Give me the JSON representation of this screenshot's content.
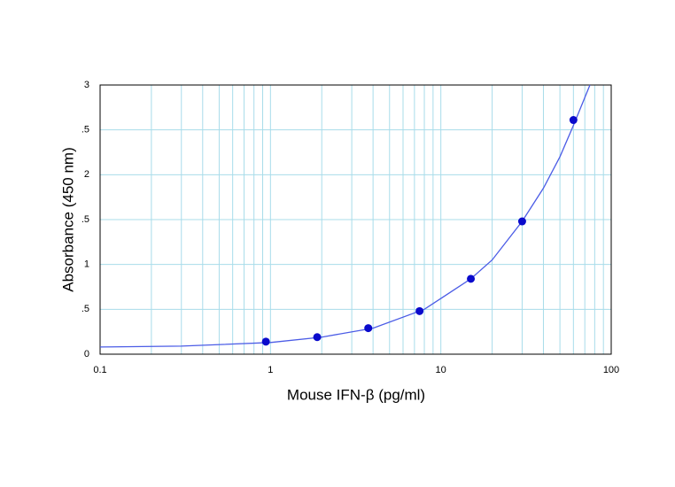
{
  "chart_data": {
    "type": "scatter",
    "x_label": "Mouse IFN-β (pg/ml)",
    "y_label": "Absorbance (450 nm)",
    "xscale": "log",
    "xlim": [
      0.1,
      100
    ],
    "xticks": [
      0.1,
      1,
      10,
      100
    ],
    "xminorticks": [
      0.2,
      0.3,
      0.4,
      0.5,
      0.6,
      0.7,
      0.8,
      0.9,
      2,
      3,
      4,
      5,
      6,
      7,
      8,
      9,
      20,
      30,
      40,
      50,
      60,
      70,
      80,
      90
    ],
    "ylim": [
      0,
      3
    ],
    "yticks": [
      0,
      {
        "value": 0.5,
        "label": ".5"
      },
      1,
      {
        "value": 1.5,
        "label": ".5"
      },
      2,
      {
        "value": 2.5,
        "label": ".5"
      },
      3
    ],
    "grid": true,
    "grid_color": "#a8dcea",
    "series": [
      {
        "type": "line",
        "color": "#4b5ce6",
        "x": [
          0.1,
          0.3,
          1,
          2,
          4,
          8,
          15,
          20,
          30,
          40,
          50,
          60,
          75
        ],
        "values": [
          0.08,
          0.09,
          0.13,
          0.19,
          0.29,
          0.5,
          0.84,
          1.05,
          1.48,
          1.85,
          2.2,
          2.55,
          3.0
        ]
      },
      {
        "type": "scatter",
        "color": "#0a0acc",
        "x": [
          0.94,
          1.88,
          3.75,
          7.5,
          15,
          30,
          60
        ],
        "values": [
          0.14,
          0.19,
          0.29,
          0.48,
          0.84,
          1.48,
          2.61
        ]
      }
    ]
  }
}
